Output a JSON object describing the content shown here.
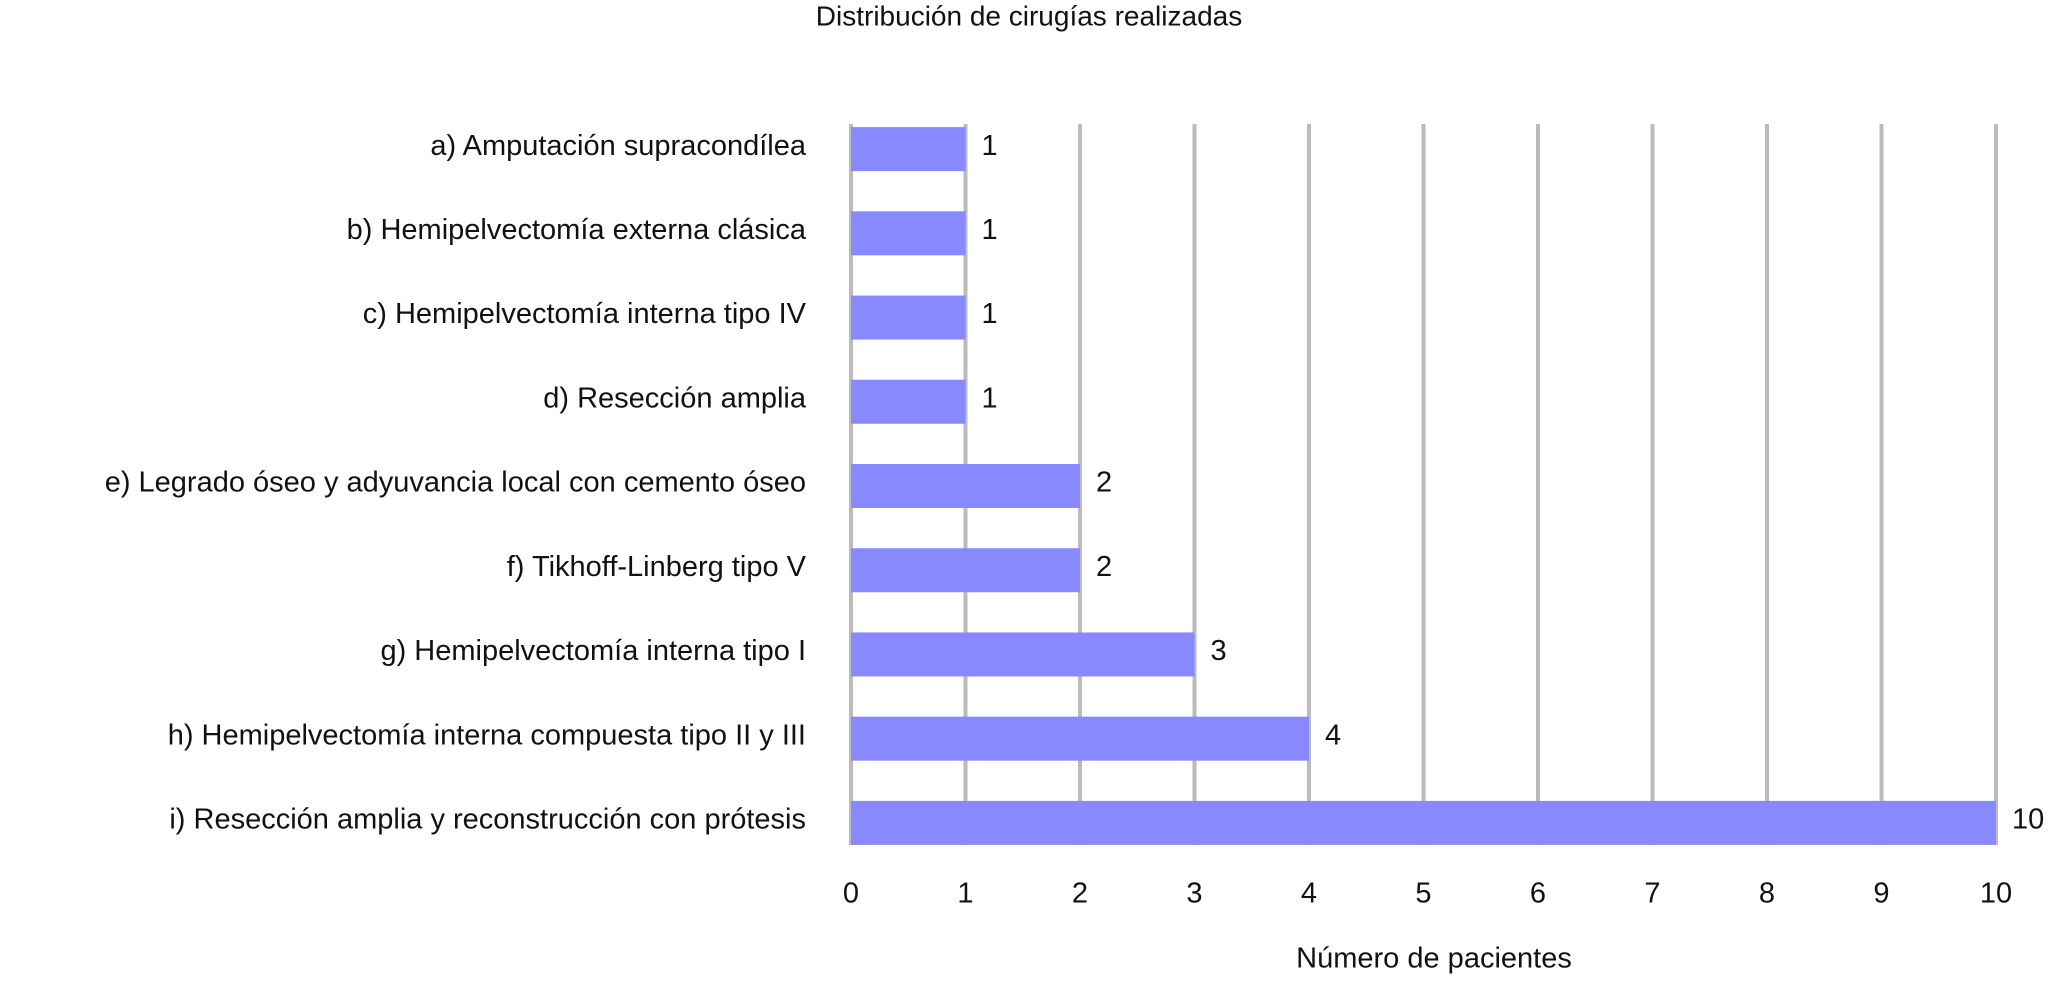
{
  "chart_data": {
    "type": "bar",
    "orientation": "horizontal",
    "title": "Distribución de cirugías realizadas",
    "x_label": "Número de pacientes",
    "categories": [
      "a) Amputación supracondílea",
      "b) Hemipelvectomía externa clásica",
      "c) Hemipelvectomía interna tipo IV",
      "d) Resección amplia",
      "e) Legrado óseo y adyuvancia local con cemento óseo",
      "f) Tikhoff-Linberg tipo V",
      "g) Hemipelvectomía interna tipo I",
      "h) Hemipelvectomía interna compuesta tipo II y III",
      "i) Resección amplia y reconstrucción con prótesis"
    ],
    "values": [
      1,
      1,
      1,
      1,
      2,
      2,
      3,
      4,
      10
    ],
    "color": "#8888ff",
    "xlim": [
      0,
      10
    ],
    "xticks": [
      0,
      1,
      2,
      3,
      4,
      5,
      6,
      7,
      8,
      9,
      10
    ],
    "grid": true
  }
}
